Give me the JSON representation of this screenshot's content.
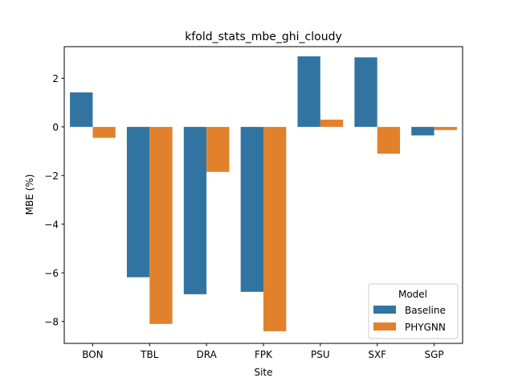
{
  "chart_data": {
    "type": "bar",
    "title": "kfold_stats_mbe_ghi_cloudy",
    "xlabel": "Site",
    "ylabel": "MBE (%)",
    "categories": [
      "BON",
      "TBL",
      "DRA",
      "FPK",
      "PSU",
      "SXF",
      "SGP"
    ],
    "series": [
      {
        "name": "Baseline",
        "color": "#3274a1",
        "values": [
          1.42,
          -6.18,
          -6.88,
          -6.78,
          2.9,
          2.86,
          -0.35
        ]
      },
      {
        "name": "PHYGNN",
        "color": "#e1812c",
        "values": [
          -0.45,
          -8.1,
          -1.85,
          -8.4,
          0.3,
          -1.1,
          -0.13
        ]
      }
    ],
    "ylim": [
      -8.9,
      3.3
    ],
    "yticks": [
      2,
      0,
      -2,
      -4,
      -6,
      -8
    ],
    "ytick_labels": [
      "2",
      "0",
      "−2",
      "−4",
      "−6",
      "−8"
    ],
    "legend": {
      "title": "Model",
      "position": "lower-right"
    },
    "grid": false
  }
}
